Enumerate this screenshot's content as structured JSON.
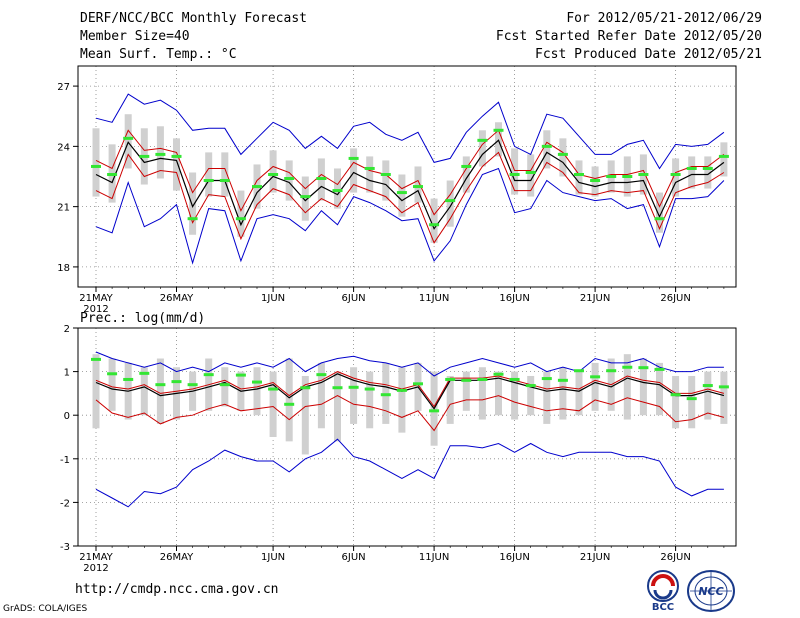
{
  "header": {
    "title": "DERF/NCC/BCC Monthly Forecast",
    "member_size": "Member Size=40",
    "variable": "Mean Surf. Temp.: °C",
    "period": "For 2012/05/21-2012/06/29",
    "start_date": "Fcst Started Refer Date 2012/05/20",
    "produced_date": "Fcst Produced Date 2012/05/21"
  },
  "footer": {
    "url": "http://cmdp.ncc.cma.gov.cn",
    "credit": "GrADS: COLA/IGES",
    "logo_bcc": "BCC",
    "logo_ncc": "NCC"
  },
  "colors": {
    "ensemble_max_min": "#0000cc",
    "spread": "#cc0000",
    "mean": "#000000",
    "climate": "#33e633",
    "box": "#d0d0d0"
  },
  "chart_data": [
    {
      "type": "line",
      "title": "Mean Surf. Temp.: °C",
      "ylim": [
        17,
        28
      ],
      "yticks": [
        18,
        21,
        24,
        27
      ],
      "xticks": [
        {
          "day": 0,
          "label": "21MAY",
          "sub": "2012"
        },
        {
          "day": 5,
          "label": "26MAY"
        },
        {
          "day": 11,
          "label": "1JUN"
        },
        {
          "day": 16,
          "label": "6JUN"
        },
        {
          "day": 21,
          "label": "11JUN"
        },
        {
          "day": 26,
          "label": "16JUN"
        },
        {
          "day": 31,
          "label": "21JUN"
        },
        {
          "day": 36,
          "label": "26JUN"
        }
      ],
      "days": 40,
      "series": [
        {
          "name": "max",
          "values": [
            25.4,
            25.2,
            26.6,
            26.1,
            26.3,
            25.8,
            24.8,
            24.9,
            24.9,
            23.6,
            24.4,
            25.2,
            24.8,
            23.9,
            24.5,
            23.9,
            25.0,
            25.2,
            24.6,
            24.3,
            24.7,
            23.2,
            23.4,
            24.7,
            25.5,
            26.2,
            24.0,
            23.6,
            25.6,
            25.4,
            24.5,
            23.6,
            23.6,
            24.1,
            24.3,
            22.9,
            24.1,
            24.0,
            24.1,
            24.7
          ]
        },
        {
          "name": "upper",
          "values": [
            23.3,
            22.9,
            24.8,
            23.8,
            23.9,
            23.7,
            21.7,
            22.9,
            22.9,
            20.8,
            22.3,
            23.0,
            22.7,
            21.9,
            22.6,
            22.1,
            23.2,
            22.8,
            22.6,
            21.9,
            22.3,
            20.6,
            21.6,
            22.9,
            24.1,
            24.8,
            22.8,
            22.8,
            24.2,
            23.7,
            22.6,
            22.4,
            22.6,
            22.6,
            22.8,
            21.0,
            22.7,
            23.0,
            23.0,
            23.6
          ]
        },
        {
          "name": "mean",
          "values": [
            22.6,
            22.2,
            24.2,
            23.2,
            23.4,
            23.3,
            21.0,
            22.3,
            22.3,
            20.1,
            21.7,
            22.5,
            22.2,
            21.3,
            22.0,
            21.6,
            22.7,
            22.3,
            22.1,
            21.3,
            21.8,
            19.9,
            21.0,
            22.4,
            23.6,
            24.3,
            22.3,
            22.3,
            23.7,
            23.2,
            22.2,
            22.0,
            22.2,
            22.2,
            22.3,
            20.5,
            22.2,
            22.6,
            22.6,
            23.2
          ]
        },
        {
          "name": "lower",
          "values": [
            21.8,
            21.4,
            23.6,
            22.5,
            22.8,
            22.7,
            20.2,
            21.6,
            21.5,
            19.4,
            21.1,
            21.9,
            21.6,
            20.7,
            21.4,
            21.0,
            22.1,
            21.8,
            21.5,
            20.7,
            21.2,
            19.2,
            20.4,
            21.8,
            23.0,
            23.7,
            21.8,
            21.8,
            23.2,
            22.7,
            21.7,
            21.6,
            21.8,
            21.7,
            21.8,
            19.9,
            21.7,
            22.0,
            22.2,
            22.7
          ]
        },
        {
          "name": "min",
          "values": [
            20.0,
            19.7,
            22.2,
            20.0,
            20.4,
            21.1,
            18.2,
            20.9,
            20.8,
            18.3,
            20.4,
            20.6,
            20.4,
            19.8,
            20.8,
            20.1,
            21.5,
            21.2,
            20.8,
            20.3,
            20.4,
            18.3,
            19.3,
            21.1,
            22.6,
            22.9,
            20.7,
            20.9,
            22.3,
            21.7,
            21.5,
            21.3,
            21.4,
            20.9,
            21.1,
            19.0,
            21.4,
            21.4,
            21.5,
            22.3
          ]
        },
        {
          "name": "climate",
          "values": [
            23.0,
            22.6,
            24.4,
            23.5,
            23.6,
            23.5,
            20.4,
            22.3,
            22.3,
            20.4,
            22.0,
            22.6,
            22.4,
            21.5,
            22.4,
            21.8,
            23.4,
            22.9,
            22.6,
            21.7,
            22.0,
            20.1,
            21.3,
            23.0,
            24.3,
            24.8,
            22.6,
            22.7,
            24.0,
            23.6,
            22.6,
            22.3,
            22.5,
            22.5,
            22.6,
            20.4,
            22.6,
            22.9,
            22.9,
            23.5
          ]
        }
      ],
      "box": {
        "upper": [
          24.9,
          24.1,
          25.6,
          24.9,
          25.0,
          24.4,
          22.7,
          23.7,
          23.7,
          21.8,
          23.1,
          23.8,
          23.3,
          22.5,
          23.4,
          22.9,
          23.9,
          23.5,
          23.3,
          22.6,
          23.0,
          21.4,
          22.3,
          23.5,
          24.8,
          25.2,
          23.9,
          23.6,
          24.8,
          24.4,
          23.3,
          23.0,
          23.3,
          23.5,
          23.6,
          21.7,
          23.4,
          23.5,
          23.5,
          24.2
        ],
        "lower": [
          21.5,
          21.2,
          22.9,
          22.1,
          22.4,
          21.8,
          19.6,
          21.5,
          21.5,
          19.5,
          20.9,
          21.7,
          21.3,
          20.3,
          21.3,
          20.9,
          21.7,
          21.7,
          21.3,
          20.5,
          21.2,
          19.2,
          20.0,
          21.7,
          23.0,
          23.5,
          21.6,
          21.5,
          22.9,
          22.5,
          21.6,
          21.5,
          21.7,
          21.5,
          21.6,
          19.7,
          21.5,
          21.9,
          21.9,
          22.5
        ]
      }
    },
    {
      "type": "line",
      "title": "Prec.: log(mm/d)",
      "ylim": [
        -3,
        2
      ],
      "yticks": [
        -3,
        -2,
        -1,
        0,
        1,
        2
      ],
      "xticks": [
        {
          "day": 0,
          "label": "21MAY",
          "sub": "2012"
        },
        {
          "day": 5,
          "label": "26MAY"
        },
        {
          "day": 11,
          "label": "1JUN"
        },
        {
          "day": 16,
          "label": "6JUN"
        },
        {
          "day": 21,
          "label": "11JUN"
        },
        {
          "day": 26,
          "label": "16JUN"
        },
        {
          "day": 31,
          "label": "21JUN"
        },
        {
          "day": 36,
          "label": "26JUN"
        }
      ],
      "days": 40,
      "series": [
        {
          "name": "max",
          "values": [
            1.45,
            1.3,
            1.2,
            1.1,
            1.2,
            1.0,
            1.1,
            1.0,
            1.2,
            1.1,
            1.2,
            1.1,
            1.3,
            1.0,
            1.2,
            1.3,
            1.35,
            1.25,
            1.2,
            1.1,
            1.2,
            0.9,
            1.1,
            1.2,
            1.3,
            1.2,
            1.1,
            1.2,
            1.0,
            1.1,
            1.0,
            1.3,
            1.2,
            1.2,
            1.3,
            1.1,
            1.0,
            1.0,
            1.1,
            1.1
          ]
        },
        {
          "name": "upper",
          "values": [
            0.8,
            0.65,
            0.6,
            0.7,
            0.5,
            0.55,
            0.6,
            0.7,
            0.8,
            0.6,
            0.65,
            0.75,
            0.45,
            0.7,
            0.8,
            1.0,
            0.85,
            0.75,
            0.7,
            0.6,
            0.7,
            0.2,
            0.85,
            0.85,
            0.85,
            0.9,
            0.8,
            0.7,
            0.6,
            0.65,
            0.6,
            0.8,
            0.7,
            0.9,
            0.8,
            0.75,
            0.5,
            0.5,
            0.6,
            0.5
          ]
        },
        {
          "name": "mean",
          "values": [
            0.75,
            0.6,
            0.55,
            0.65,
            0.45,
            0.5,
            0.55,
            0.65,
            0.75,
            0.55,
            0.6,
            0.7,
            0.4,
            0.65,
            0.75,
            0.95,
            0.8,
            0.7,
            0.65,
            0.55,
            0.65,
            0.15,
            0.8,
            0.8,
            0.8,
            0.85,
            0.75,
            0.65,
            0.55,
            0.6,
            0.55,
            0.75,
            0.65,
            0.85,
            0.75,
            0.7,
            0.45,
            0.45,
            0.55,
            0.45
          ]
        },
        {
          "name": "lower",
          "values": [
            0.35,
            0.05,
            -0.05,
            0.05,
            -0.2,
            -0.05,
            0.0,
            0.15,
            0.25,
            0.1,
            0.15,
            0.2,
            -0.1,
            0.2,
            0.25,
            0.45,
            0.25,
            0.2,
            0.1,
            -0.05,
            0.1,
            -0.35,
            0.25,
            0.35,
            0.35,
            0.45,
            0.3,
            0.2,
            0.1,
            0.15,
            0.1,
            0.35,
            0.25,
            0.4,
            0.3,
            0.2,
            -0.15,
            -0.1,
            0.05,
            -0.05
          ]
        },
        {
          "name": "min",
          "values": [
            -1.7,
            -1.9,
            -2.1,
            -1.75,
            -1.8,
            -1.65,
            -1.25,
            -1.05,
            -0.8,
            -0.95,
            -1.05,
            -1.05,
            -1.3,
            -1.0,
            -0.85,
            -0.55,
            -0.95,
            -1.05,
            -1.25,
            -1.45,
            -1.25,
            -1.45,
            -0.7,
            -0.7,
            -0.75,
            -0.65,
            -0.85,
            -0.65,
            -0.85,
            -0.95,
            -0.85,
            -0.85,
            -0.85,
            -0.95,
            -0.95,
            -1.05,
            -1.65,
            -1.85,
            -1.7,
            -1.7
          ]
        },
        {
          "name": "climate",
          "values": [
            1.28,
            0.95,
            0.82,
            0.96,
            0.7,
            0.77,
            0.7,
            0.93,
            0.7,
            0.92,
            0.76,
            0.6,
            0.25,
            0.63,
            0.93,
            0.63,
            0.64,
            0.6,
            0.47,
            0.57,
            0.72,
            0.1,
            0.82,
            0.8,
            0.82,
            0.94,
            0.82,
            0.68,
            0.84,
            0.8,
            1.02,
            0.88,
            1.02,
            1.1,
            1.09,
            1.05,
            0.47,
            0.38,
            0.68,
            0.65
          ]
        }
      ],
      "box": {
        "upper": [
          1.4,
          1.3,
          1.2,
          1.1,
          1.3,
          1.1,
          1.0,
          1.3,
          1.1,
          1.0,
          1.1,
          1.0,
          1.3,
          0.9,
          1.2,
          1.0,
          1.1,
          1.0,
          1.2,
          1.1,
          1.2,
          1.0,
          0.9,
          1.0,
          1.1,
          1.0,
          1.0,
          0.9,
          1.0,
          1.1,
          1.0,
          1.2,
          1.3,
          1.4,
          1.3,
          1.2,
          0.9,
          0.9,
          1.0,
          1.0
        ],
        "lower": [
          -0.3,
          0.1,
          -0.1,
          0.0,
          -0.2,
          -0.1,
          0.1,
          0.1,
          0.2,
          0.1,
          0.0,
          -0.5,
          -0.6,
          -0.9,
          -0.3,
          -0.6,
          -0.2,
          -0.3,
          -0.2,
          -0.4,
          0.1,
          -0.7,
          -0.2,
          0.1,
          -0.1,
          0.0,
          -0.1,
          0.0,
          -0.2,
          -0.1,
          0.0,
          0.1,
          0.1,
          -0.1,
          0.0,
          0.0,
          -0.3,
          -0.3,
          -0.1,
          -0.2
        ]
      }
    }
  ]
}
